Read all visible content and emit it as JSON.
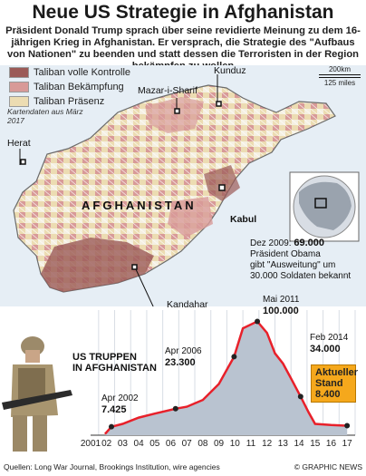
{
  "title": "Neue US Strategie in Afghanistan",
  "subtitle": "Präsident Donald Trump sprach über seine revidierte Meinung zu dem 16-jährigen Krieg in Afghanistan. Er versprach, die Strategie des \"Aufbaus von Nationen\" zu beenden und statt dessen die Terroristen in der Region bekämpfen zu wollen",
  "legend": {
    "items": [
      {
        "label": "Taliban volle Kontrolle",
        "color": "#9b5a57"
      },
      {
        "label": "Taliban Bekämpfung",
        "color": "#d89a98"
      },
      {
        "label": "Taliban Präsenz",
        "color": "#ecdcb2"
      }
    ],
    "note": "Kartendaten aus März 2017"
  },
  "map": {
    "country": "AFGHANISTAN",
    "cities": [
      "Kunduz",
      "Mazar-i-Sharif",
      "Herat",
      "Kabul",
      "Kandahar"
    ],
    "scale_km": "200km",
    "scale_miles": "125 miles"
  },
  "chart": {
    "title_line1": "US TRUPPEN",
    "title_line2": "IN AFGHANISTAN",
    "annotations": [
      {
        "label": "Apr 2002",
        "value": "7.425"
      },
      {
        "label": "Apr 2006",
        "value": "23.300"
      },
      {
        "label": "Mai 2011",
        "value": "100.000"
      },
      {
        "label": "Feb 2014",
        "value": "34.000"
      }
    ],
    "dez2009": {
      "label": "Dez 2009:",
      "value": "69.000",
      "text1": "Präsident Obama",
      "text2": "gibt \"Ausweitung\" um",
      "text3": "30.000 Soldaten bekannt"
    },
    "current": {
      "line1": "Aktueller",
      "line2": "Stand",
      "value": "8.400"
    },
    "x_labels": [
      "2001",
      "02",
      "03",
      "04",
      "05",
      "06",
      "07",
      "08",
      "09",
      "10",
      "11",
      "12",
      "13",
      "14",
      "15",
      "16",
      "17"
    ]
  },
  "chart_data": {
    "type": "area",
    "x": [
      2001.9,
      2002.3,
      2003.0,
      2004.0,
      2005.0,
      2006.3,
      2007.0,
      2008.0,
      2009.0,
      2009.95,
      2010.5,
      2011.4,
      2012.0,
      2012.5,
      2013.0,
      2013.5,
      2014.1,
      2014.6,
      2015.0,
      2016.0,
      2017.0
    ],
    "values": [
      1000,
      7425,
      10000,
      15500,
      19000,
      23300,
      25000,
      31000,
      45000,
      69000,
      94000,
      100000,
      90000,
      72000,
      63000,
      50000,
      34000,
      20000,
      10000,
      9000,
      8400
    ],
    "title": "US TRUPPEN IN AFGHANISTAN",
    "xlabel": "",
    "ylabel": "",
    "xlim": [
      2001,
      2017.5
    ],
    "ylim": [
      0,
      110000
    ],
    "colors": {
      "line": "#e8202a",
      "fill": "#b9c3d0"
    }
  },
  "footer": {
    "sources": "Quellen: Long War Journal, Brookings Institution, wire agencies",
    "credit": "© GRAPHIC NEWS"
  }
}
